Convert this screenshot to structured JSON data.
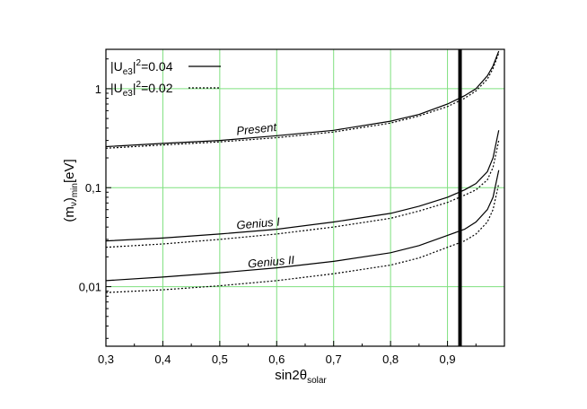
{
  "chart_data": {
    "type": "line",
    "title": "",
    "xlabel": {
      "main": "sin2θ",
      "sub": "solar"
    },
    "ylabel": {
      "open": "(m",
      "nu": "ν",
      "close": ")",
      "sub": "min",
      "unit": "[eV]"
    },
    "x_scale": "linear",
    "y_scale": "log",
    "xlim": [
      0.3,
      1.0
    ],
    "ylim": [
      0.0025,
      2.5
    ],
    "x_ticks": [
      0.3,
      0.4,
      0.5,
      0.6,
      0.7,
      0.8,
      0.9
    ],
    "x_tick_labels": [
      "0,3",
      "0,4",
      "0,5",
      "0,6",
      "0,7",
      "0,8",
      "0,9"
    ],
    "y_ticks": [
      0.01,
      0.1,
      1
    ],
    "y_tick_labels": [
      "0,01",
      "0,1",
      "1"
    ],
    "grid": true,
    "grid_color": "#7fe07f",
    "legend_position": "top-left",
    "legend": [
      {
        "text_U": "|U",
        "sub": "e3",
        "sup": "2",
        "text_val": "|=0.04",
        "style": "solid"
      },
      {
        "text_U": "|U",
        "sub": "e3",
        "sup": "2",
        "text_val": "|=0.02",
        "style": "dotted"
      }
    ],
    "vertical_line": {
      "x": 0.922
    },
    "annotations": [
      {
        "text": "Present",
        "x": 0.53,
        "y": 0.34,
        "rotate": -6
      },
      {
        "text": "Genius I",
        "x": 0.53,
        "y": 0.038,
        "rotate": -5
      },
      {
        "text": "Genius II",
        "x": 0.55,
        "y": 0.0155,
        "rotate": -5
      }
    ],
    "series": [
      {
        "style": "solid",
        "x": [
          0.3,
          0.4,
          0.5,
          0.6,
          0.7,
          0.8,
          0.85,
          0.9,
          0.93,
          0.95,
          0.97,
          0.98,
          0.99
        ],
        "y": [
          0.26,
          0.28,
          0.3,
          0.335,
          0.38,
          0.47,
          0.55,
          0.7,
          0.85,
          1.0,
          1.35,
          1.7,
          2.4
        ]
      },
      {
        "style": "dotted",
        "x": [
          0.3,
          0.4,
          0.5,
          0.6,
          0.7,
          0.8,
          0.85,
          0.9,
          0.93,
          0.95,
          0.97,
          0.98,
          0.99
        ],
        "y": [
          0.25,
          0.27,
          0.29,
          0.32,
          0.365,
          0.45,
          0.53,
          0.66,
          0.8,
          0.95,
          1.25,
          1.6,
          2.3
        ]
      },
      {
        "style": "solid",
        "x": [
          0.3,
          0.4,
          0.5,
          0.6,
          0.7,
          0.8,
          0.85,
          0.9,
          0.93,
          0.95,
          0.97,
          0.98,
          0.99
        ],
        "y": [
          0.029,
          0.031,
          0.034,
          0.038,
          0.045,
          0.055,
          0.065,
          0.08,
          0.095,
          0.11,
          0.145,
          0.2,
          0.38
        ]
      },
      {
        "style": "dotted",
        "x": [
          0.3,
          0.4,
          0.5,
          0.6,
          0.7,
          0.8,
          0.85,
          0.9,
          0.93,
          0.95,
          0.97,
          0.98,
          0.99
        ],
        "y": [
          0.025,
          0.027,
          0.03,
          0.034,
          0.04,
          0.049,
          0.058,
          0.071,
          0.084,
          0.095,
          0.12,
          0.16,
          0.3
        ]
      },
      {
        "style": "solid",
        "x": [
          0.3,
          0.4,
          0.5,
          0.6,
          0.7,
          0.8,
          0.85,
          0.9,
          0.93,
          0.95,
          0.97,
          0.98,
          0.99
        ],
        "y": [
          0.0115,
          0.0125,
          0.0138,
          0.0155,
          0.018,
          0.022,
          0.026,
          0.033,
          0.038,
          0.045,
          0.06,
          0.08,
          0.15
        ]
      },
      {
        "style": "dotted",
        "x": [
          0.3,
          0.4,
          0.5,
          0.6,
          0.7,
          0.8,
          0.85,
          0.9,
          0.93,
          0.95,
          0.97,
          0.98,
          0.99
        ],
        "y": [
          0.0087,
          0.0093,
          0.0102,
          0.0115,
          0.0135,
          0.0165,
          0.0195,
          0.025,
          0.029,
          0.034,
          0.045,
          0.06,
          0.11
        ]
      }
    ]
  }
}
